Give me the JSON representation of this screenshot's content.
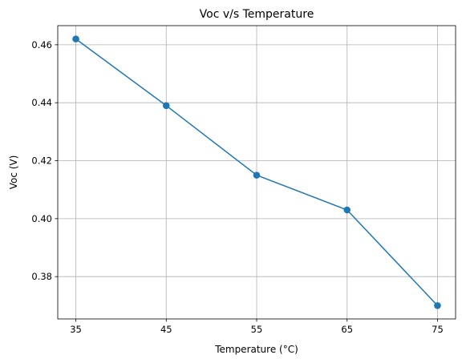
{
  "chart_data": {
    "type": "line",
    "title": "Voc v/s Temperature",
    "xlabel": "Temperature (°C)",
    "ylabel": "Voc (V)",
    "x": [
      35,
      45,
      55,
      65,
      75
    ],
    "series": [
      {
        "values": [
          0.462,
          0.439,
          0.415,
          0.403,
          0.37
        ]
      }
    ],
    "xticks": [
      "35",
      "45",
      "55",
      "65",
      "75"
    ],
    "yticks": [
      "0.38",
      "0.40",
      "0.42",
      "0.44",
      "0.46"
    ],
    "xlim": [
      33,
      77
    ],
    "ylim": [
      0.3654,
      0.4666
    ],
    "grid": true,
    "colors": {
      "line": "#1f77b4",
      "marker": "#1f77b4",
      "grid": "#b0b0b0"
    },
    "markers": "circle"
  }
}
